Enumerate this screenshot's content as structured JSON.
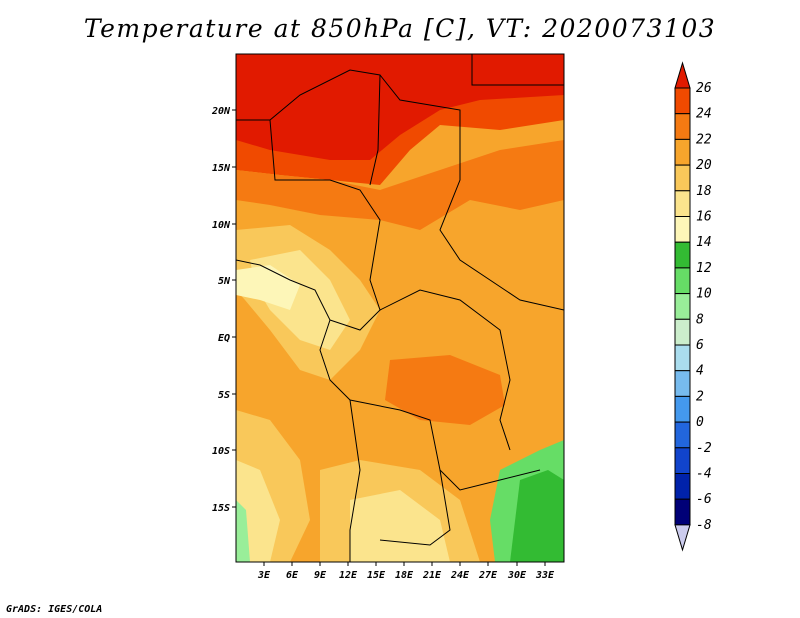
{
  "title": "Temperature at 850hPa [C], VT: 2020073103",
  "credit": "GrADS: IGES/COLA",
  "map": {
    "lat_labels": [
      "20N",
      "15N",
      "10N",
      "5N",
      "EQ",
      "5S",
      "10S",
      "15S"
    ],
    "lon_labels": [
      "3E",
      "6E",
      "9E",
      "12E",
      "15E",
      "18E",
      "21E",
      "24E",
      "27E",
      "30E",
      "33E"
    ]
  },
  "colorbar": {
    "labels": [
      "26",
      "24",
      "22",
      "20",
      "18",
      "16",
      "14",
      "12",
      "10",
      "8",
      "6",
      "4",
      "2",
      "0",
      "-2",
      "-4",
      "-6",
      "-8"
    ],
    "colors": [
      "#e11a00",
      "#f04a00",
      "#f57a12",
      "#f7a52c",
      "#f9c85a",
      "#fbe48d",
      "#fdf6b8",
      "#33bb33",
      "#66dd66",
      "#99ee99",
      "#cceecc",
      "#aaddee",
      "#77bbee",
      "#4499ee",
      "#2266dd",
      "#1144cc",
      "#0022aa",
      "#000077",
      "#ccccee"
    ]
  }
}
